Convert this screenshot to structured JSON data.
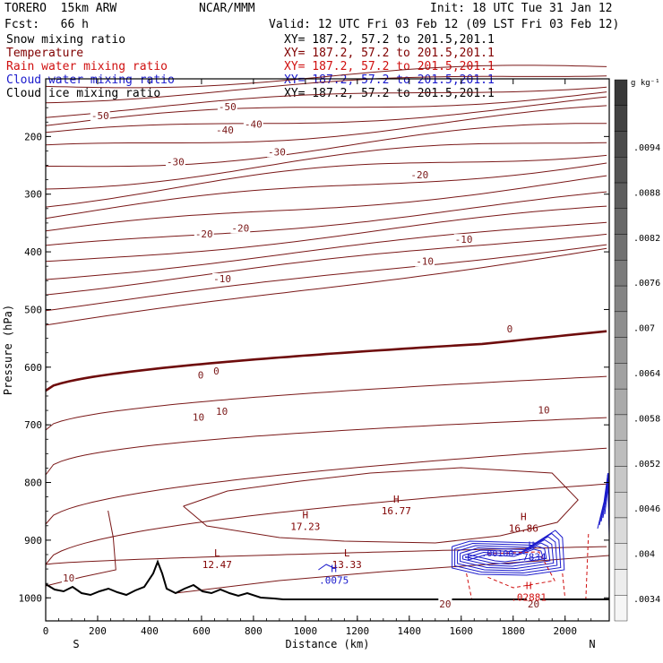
{
  "header": {
    "model": "TORERO  15km ARW",
    "org": "NCAR/MMM",
    "init": "Init: 18 UTC Tue 31 Jan 12",
    "fcst": "Fcst:   66 h",
    "valid": "Valid: 12 UTC Fri 03 Feb 12 (09 LST Fri 03 Feb 12)"
  },
  "fields": [
    {
      "name": "Snow mixing ratio",
      "xy": "XY= 187.2, 57.2 to 201.5,201.1",
      "color": "#000000"
    },
    {
      "name": "Temperature",
      "xy": "XY= 187.2, 57.2 to 201.5,201.1",
      "color": "#800000"
    },
    {
      "name": "Rain water mixing ratio",
      "xy": "XY= 187.2, 57.2 to 201.5,201.1",
      "color": "#d01010"
    },
    {
      "name": "Cloud water mixing ratio",
      "xy": "XY= 187.2, 57.2 to 201.5,201.1",
      "color": "#1a1acc"
    },
    {
      "name": "Cloud ice mixing ratio",
      "xy": "XY= 187.2, 57.2 to 201.5,201.1",
      "color": "#000000"
    }
  ],
  "chart_data": {
    "type": "cross-section contour",
    "xlabel": "Distance (km)",
    "ylabel": "Pressure (hPa)",
    "xlim": [
      0,
      2170
    ],
    "ylim": [
      1040,
      100
    ],
    "x_ticks": [
      0,
      200,
      400,
      600,
      800,
      1000,
      1200,
      1400,
      1600,
      1800,
      2000
    ],
    "y_ticks": [
      200,
      300,
      400,
      500,
      600,
      700,
      800,
      900,
      1000
    ],
    "endpoints": {
      "left": "S",
      "right": "N"
    },
    "colorbar": {
      "unit": "g kg⁻¹",
      "labels": [
        ".0094",
        ".0088",
        ".0082",
        ".0076",
        ".007",
        ".0064",
        ".0058",
        ".0052",
        ".0046",
        ".004",
        ".0034"
      ]
    },
    "temperature_labels": [
      {
        "text": "-50",
        "x": 210,
        "p": 165
      },
      {
        "text": "-50",
        "x": 700,
        "p": 150
      },
      {
        "text": "-40",
        "x": 690,
        "p": 190
      },
      {
        "text": "-40",
        "x": 800,
        "p": 180
      },
      {
        "text": "-30",
        "x": 500,
        "p": 245
      },
      {
        "text": "-30",
        "x": 890,
        "p": 228
      },
      {
        "text": "-20",
        "x": 610,
        "p": 370
      },
      {
        "text": "-20",
        "x": 750,
        "p": 360
      },
      {
        "text": "-20",
        "x": 1440,
        "p": 268
      },
      {
        "text": "-10",
        "x": 680,
        "p": 448
      },
      {
        "text": "-10",
        "x": 1460,
        "p": 418
      },
      {
        "text": "-10",
        "x": 1610,
        "p": 380
      },
      {
        "text": "0",
        "x": 620,
        "p": 615
      },
      {
        "text": "0",
        "x": 680,
        "p": 608
      },
      {
        "text": "0",
        "x": 1810,
        "p": 535
      },
      {
        "text": "10",
        "x": 600,
        "p": 688
      },
      {
        "text": "10",
        "x": 690,
        "p": 678
      },
      {
        "text": "10",
        "x": 1930,
        "p": 676
      },
      {
        "text": "10",
        "x": 100,
        "p": 967
      },
      {
        "text": "20",
        "x": 1550,
        "p": 1012
      },
      {
        "text": "20",
        "x": 1890,
        "p": 1012
      }
    ],
    "extrema": [
      {
        "kind": "H",
        "value": "17.23",
        "x": 1000,
        "p": 862,
        "color": "#800000"
      },
      {
        "kind": "H",
        "value": "16.77",
        "x": 1350,
        "p": 835,
        "color": "#800000"
      },
      {
        "kind": "H",
        "value": "16.86",
        "x": 1840,
        "p": 865,
        "color": "#800000"
      },
      {
        "kind": "L",
        "value": "12.47",
        "x": 660,
        "p": 928,
        "color": "#800000"
      },
      {
        "kind": "L",
        "value": "13.33",
        "x": 1160,
        "p": 928,
        "color": "#800000"
      },
      {
        "kind": "H",
        "value": ".0075",
        "x": 1110,
        "p": 955,
        "color": "#1a1acc"
      },
      {
        "kind": "H",
        "value": ".7834",
        "x": 1870,
        "p": 915,
        "color": "#1a1acc"
      },
      {
        "kind": "H",
        "value": ".02881",
        "x": 1860,
        "p": 985,
        "color": "#d01010"
      }
    ],
    "other_labels": [
      {
        "text": ".00100",
        "x": 1740,
        "p": 928,
        "color": "#1a1acc"
      }
    ]
  }
}
